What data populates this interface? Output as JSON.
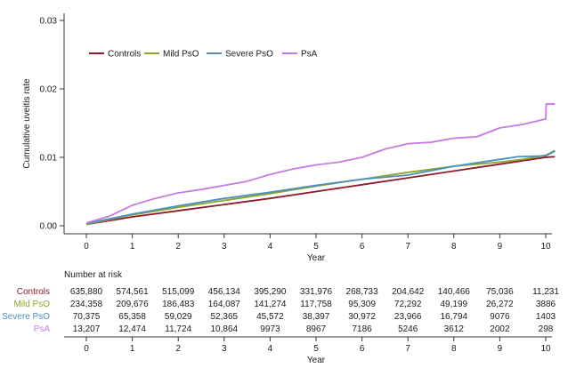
{
  "chart_data": {
    "type": "line",
    "ylabel": "Cumulative uveitis rate",
    "xlabel": "Year",
    "xlim": [
      0,
      10
    ],
    "ylim": [
      0,
      0.03
    ],
    "x_ticks": [
      0,
      1,
      2,
      3,
      4,
      5,
      6,
      7,
      8,
      9,
      10
    ],
    "y_ticks": [
      "0.00",
      "0.01",
      "0.02",
      "0.03"
    ],
    "legend_position": "top-left",
    "series": [
      {
        "name": "Controls",
        "color": "#8b1a2b",
        "points": [
          [
            0,
            0.0002
          ],
          [
            1,
            0.0013
          ],
          [
            2,
            0.0022
          ],
          [
            3,
            0.0031
          ],
          [
            4,
            0.004
          ],
          [
            5,
            0.005
          ],
          [
            6,
            0.006
          ],
          [
            7,
            0.007
          ],
          [
            8,
            0.008
          ],
          [
            9,
            0.009
          ],
          [
            10,
            0.01
          ],
          [
            10.2,
            0.0101
          ]
        ]
      },
      {
        "name": "Mild PsO",
        "color": "#8aa626",
        "points": [
          [
            0,
            0.0002
          ],
          [
            1,
            0.0016
          ],
          [
            2,
            0.0027
          ],
          [
            3,
            0.0037
          ],
          [
            4,
            0.0047
          ],
          [
            5,
            0.0058
          ],
          [
            6,
            0.0068
          ],
          [
            7,
            0.0078
          ],
          [
            8,
            0.0087
          ],
          [
            9,
            0.0093
          ],
          [
            9.5,
            0.0097
          ],
          [
            10,
            0.0103
          ],
          [
            10.2,
            0.011
          ]
        ]
      },
      {
        "name": "Severe PsO",
        "color": "#4d8fbf",
        "points": [
          [
            0,
            0.0003
          ],
          [
            1,
            0.0017
          ],
          [
            2,
            0.0029
          ],
          [
            3,
            0.004
          ],
          [
            4,
            0.0049
          ],
          [
            5,
            0.0059
          ],
          [
            6,
            0.0068
          ],
          [
            7,
            0.0074
          ],
          [
            8,
            0.0087
          ],
          [
            9,
            0.0097
          ],
          [
            9.4,
            0.0101
          ],
          [
            10,
            0.0102
          ],
          [
            10.2,
            0.0109
          ]
        ]
      },
      {
        "name": "PsA",
        "color": "#c77be0",
        "points": [
          [
            0,
            0.0004
          ],
          [
            0.5,
            0.0014
          ],
          [
            1,
            0.003
          ],
          [
            1.5,
            0.004
          ],
          [
            2,
            0.0048
          ],
          [
            2.5,
            0.0053
          ],
          [
            3,
            0.0059
          ],
          [
            3.5,
            0.0065
          ],
          [
            4,
            0.0075
          ],
          [
            4.5,
            0.0083
          ],
          [
            5,
            0.0089
          ],
          [
            5.5,
            0.0093
          ],
          [
            6,
            0.01
          ],
          [
            6.5,
            0.0112
          ],
          [
            7,
            0.012
          ],
          [
            7.5,
            0.0122
          ],
          [
            8,
            0.0128
          ],
          [
            8.5,
            0.013
          ],
          [
            9,
            0.0143
          ],
          [
            9.5,
            0.0148
          ],
          [
            10,
            0.0156
          ],
          [
            10.01,
            0.0178
          ],
          [
            10.2,
            0.0178
          ]
        ]
      }
    ],
    "risk_table": {
      "title": "Number at risk",
      "xlabel": "Year",
      "rows": [
        {
          "name": "Controls",
          "color": "#8b1a2b",
          "values": [
            "635,880",
            "574,561",
            "515,099",
            "456,134",
            "395,290",
            "331,976",
            "268,733",
            "204,642",
            "140,466",
            "75,036",
            "11,231"
          ]
        },
        {
          "name": "Mild PsO",
          "color": "#8aa626",
          "values": [
            "234,358",
            "209,676",
            "186,483",
            "164,087",
            "141,274",
            "117,758",
            "95,309",
            "72,292",
            "49,199",
            "26,272",
            "3886"
          ]
        },
        {
          "name": "Severe PsO",
          "color": "#4d8fbf",
          "values": [
            "70,375",
            "65,358",
            "59,029",
            "52,365",
            "45,572",
            "38,397",
            "30,972",
            "23,966",
            "16,794",
            "9076",
            "1403"
          ]
        },
        {
          "name": "PsA",
          "color": "#c77be0",
          "values": [
            "13,207",
            "12,474",
            "11,724",
            "10,864",
            "9973",
            "8967",
            "7186",
            "5246",
            "3612",
            "2002",
            "298"
          ]
        }
      ]
    }
  }
}
